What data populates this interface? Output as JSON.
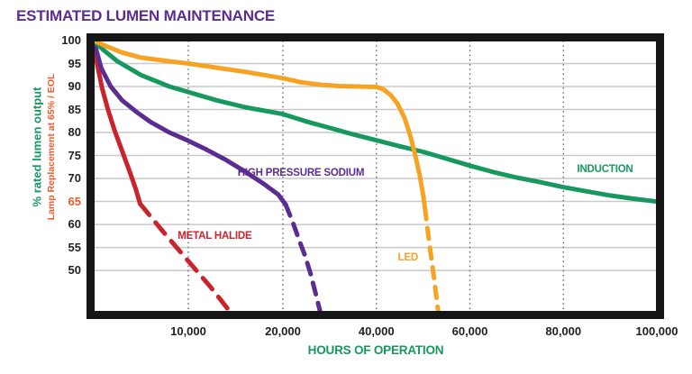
{
  "title": {
    "text": "ESTIMATED LUMEN MAINTENANCE",
    "color": "#5B2D90"
  },
  "chart_data": {
    "type": "line",
    "title": "ESTIMATED LUMEN MAINTENANCE",
    "xlabel": "HOURS OF OPERATION",
    "xlabel_color": "#17985E",
    "ylabel_primary": {
      "text": "% rated lumen output",
      "color": "#17985E"
    },
    "ylabel_secondary": {
      "text": "Lamp Replacement at 65% / EOL",
      "color": "#F05A28"
    },
    "ylim": [
      41,
      100
    ],
    "xlim": [
      0,
      100000
    ],
    "x_scale_breakpoints": [
      [
        0,
        0
      ],
      [
        20000,
        0.336
      ],
      [
        100000,
        1
      ]
    ],
    "grid": {
      "horizontal": "solid",
      "vertical": "dotted",
      "legend": "inline-labels"
    },
    "x_ticks": [
      {
        "value": 10000,
        "label": "10,000"
      },
      {
        "value": 20000,
        "label": "20,000"
      },
      {
        "value": 40000,
        "label": "40,000"
      },
      {
        "value": 60000,
        "label": "60,000"
      },
      {
        "value": 80000,
        "label": "80,000"
      },
      {
        "value": 100000,
        "label": "100,000"
      }
    ],
    "y_ticks": [
      {
        "value": 100,
        "label": "100"
      },
      {
        "value": 95,
        "label": "95"
      },
      {
        "value": 90,
        "label": "90"
      },
      {
        "value": 85,
        "label": "85"
      },
      {
        "value": 80,
        "label": "80"
      },
      {
        "value": 75,
        "label": "75"
      },
      {
        "value": 70,
        "label": "70"
      },
      {
        "value": 65,
        "label": "65",
        "color": "#F05A28"
      },
      {
        "value": 60,
        "label": "60"
      },
      {
        "value": 55,
        "label": "55"
      },
      {
        "value": 50,
        "label": "50"
      }
    ],
    "replacement_threshold_pct": 65,
    "series": [
      {
        "id": "metal-halide",
        "name": "METAL HALIDE",
        "color": "#C9242B",
        "label_pos": {
          "x": 0.215,
          "y": 0.72
        },
        "solid": [
          [
            0,
            100
          ],
          [
            400,
            94.5
          ],
          [
            900,
            89.5
          ],
          [
            1500,
            85
          ],
          [
            2200,
            80.5
          ],
          [
            3000,
            76
          ],
          [
            3800,
            71.5
          ],
          [
            4400,
            68
          ],
          [
            4900,
            64.5
          ]
        ],
        "dashed": [
          [
            4900,
            64.5
          ],
          [
            7300,
            58.5
          ],
          [
            9800,
            52.5
          ],
          [
            12300,
            46.5
          ],
          [
            14300,
            41.3
          ]
        ]
      },
      {
        "id": "high-pressure-sodium",
        "name": "HIGH PRESSURE SODIUM",
        "color": "#5B2D90",
        "label_pos": {
          "x": 0.368,
          "y": 0.49
        },
        "solid": [
          [
            0,
            100
          ],
          [
            800,
            94
          ],
          [
            1800,
            90
          ],
          [
            3000,
            87
          ],
          [
            4500,
            84.5
          ],
          [
            6000,
            82.3
          ],
          [
            8000,
            80
          ],
          [
            10000,
            78.2
          ],
          [
            12000,
            76.2
          ],
          [
            14000,
            74
          ],
          [
            16000,
            71.5
          ],
          [
            18000,
            68.8
          ],
          [
            19500,
            66.5
          ],
          [
            20600,
            64.3
          ]
        ],
        "dashed": [
          [
            20600,
            64.3
          ],
          [
            22100,
            60.5
          ],
          [
            23500,
            56.5
          ],
          [
            24800,
            53
          ],
          [
            26000,
            49
          ],
          [
            27000,
            45
          ],
          [
            27900,
            41.3
          ]
        ]
      },
      {
        "id": "induction",
        "name": "INDUCTION",
        "color": "#17985E",
        "label_pos": {
          "x": 0.908,
          "y": 0.475
        },
        "solid": [
          [
            0,
            100
          ],
          [
            1000,
            98
          ],
          [
            2500,
            95.5
          ],
          [
            5000,
            92.5
          ],
          [
            8000,
            90
          ],
          [
            10000,
            88.8
          ],
          [
            13000,
            87
          ],
          [
            16000,
            85.5
          ],
          [
            20000,
            84
          ],
          [
            25000,
            82.4
          ],
          [
            30000,
            81
          ],
          [
            35000,
            79.6
          ],
          [
            40000,
            78.3
          ],
          [
            45000,
            77
          ],
          [
            50000,
            75.8
          ],
          [
            55000,
            74.3
          ],
          [
            60000,
            72.8
          ],
          [
            65000,
            71.4
          ],
          [
            70000,
            70.2
          ],
          [
            75000,
            69.2
          ],
          [
            80000,
            68.1
          ],
          [
            85000,
            67.2
          ],
          [
            90000,
            66.3
          ],
          [
            95000,
            65.6
          ],
          [
            100000,
            65
          ]
        ],
        "dashed": []
      },
      {
        "id": "led",
        "name": "LED",
        "color": "#F6A324",
        "label_pos": {
          "x": 0.558,
          "y": 0.8
        },
        "solid": [
          [
            0,
            100
          ],
          [
            1500,
            98.6
          ],
          [
            3000,
            97.4
          ],
          [
            5000,
            96.3
          ],
          [
            7500,
            95.6
          ],
          [
            10000,
            95
          ],
          [
            13000,
            94.1
          ],
          [
            16000,
            93.2
          ],
          [
            20000,
            91.8
          ],
          [
            24000,
            90.9
          ],
          [
            28000,
            90.4
          ],
          [
            32000,
            90.1
          ],
          [
            36000,
            90
          ],
          [
            40000,
            89.9
          ],
          [
            41500,
            89.4
          ],
          [
            43000,
            88.2
          ],
          [
            44500,
            86.3
          ],
          [
            46000,
            83.2
          ],
          [
            47200,
            79.5
          ],
          [
            48200,
            75.5
          ],
          [
            49200,
            71
          ],
          [
            50000,
            66.5
          ],
          [
            50400,
            63.5
          ]
        ],
        "dashed": [
          [
            50400,
            63.5
          ],
          [
            51300,
            56
          ],
          [
            52300,
            48.5
          ],
          [
            53200,
            41.3
          ]
        ]
      }
    ]
  }
}
